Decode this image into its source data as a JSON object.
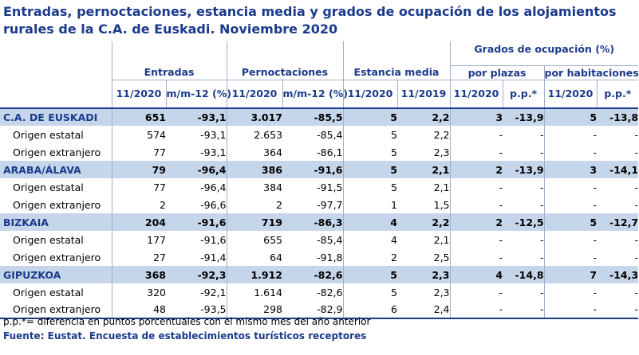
{
  "title": "Entradas, pernoctaciones, estancia media y grados de ocupación de los alojamientos rurales de la C.A. de Euskadi.  Noviembre 2020",
  "headers": {
    "entradas": "Entradas",
    "pernoctaciones": "Pernoctaciones",
    "estancia": "Estancia media",
    "grados": "Grados de ocupación (%)",
    "por_plazas": "por plazas",
    "por_habitaciones": "por habitaciones",
    "cols": [
      "11/2020",
      "m/m-12 (%)",
      "11/2020",
      "m/m-12 (%)",
      "11/2020",
      "11/2019",
      "11/2020",
      "p.p.*",
      "11/2020",
      "p.p.*"
    ]
  },
  "rows": [
    {
      "type": "region",
      "label": "C.A. DE EUSKADI",
      "values": [
        "651",
        "-93,1",
        "3.017",
        "-85,5",
        "5",
        "2,2",
        "3",
        "-13,9",
        "5",
        "-13,8"
      ]
    },
    {
      "type": "sub",
      "label": "Origen estatal",
      "values": [
        "574",
        "-93,1",
        "2.653",
        "-85,4",
        "5",
        "2,2",
        "-",
        "-",
        "-",
        "-"
      ]
    },
    {
      "type": "sub",
      "label": "Origen extranjero",
      "values": [
        "77",
        "-93,1",
        "364",
        "-86,1",
        "5",
        "2,3",
        "-",
        "-",
        "-",
        "-"
      ]
    },
    {
      "type": "region",
      "label": "ARABA/ÁLAVA",
      "values": [
        "79",
        "-96,4",
        "386",
        "-91,6",
        "5",
        "2,1",
        "2",
        "-13,9",
        "3",
        "-14,1"
      ]
    },
    {
      "type": "sub",
      "label": "Origen estatal",
      "values": [
        "77",
        "-96,4",
        "384",
        "-91,5",
        "5",
        "2,1",
        "-",
        "-",
        "-",
        "-"
      ]
    },
    {
      "type": "sub",
      "label": "Origen extranjero",
      "values": [
        "2",
        "-96,6",
        "2",
        "-97,7",
        "1",
        "1,5",
        "-",
        "-",
        "-",
        "-"
      ]
    },
    {
      "type": "region",
      "label": "BIZKAIA",
      "values": [
        "204",
        "-91,6",
        "719",
        "-86,3",
        "4",
        "2,2",
        "2",
        "-12,5",
        "5",
        "-12,7"
      ]
    },
    {
      "type": "sub",
      "label": "Origen estatal",
      "values": [
        "177",
        "-91,6",
        "655",
        "-85,4",
        "4",
        "2,1",
        "-",
        "-",
        "-",
        "-"
      ]
    },
    {
      "type": "sub",
      "label": "Origen extranjero",
      "values": [
        "27",
        "-91,4",
        "64",
        "-91,8",
        "2",
        "2,5",
        "-",
        "-",
        "-",
        "-"
      ]
    },
    {
      "type": "region",
      "label": "GIPUZKOA",
      "values": [
        "368",
        "-92,3",
        "1.912",
        "-82,6",
        "5",
        "2,3",
        "4",
        "-14,8",
        "7",
        "-14,3"
      ]
    },
    {
      "type": "sub",
      "label": "Origen estatal",
      "values": [
        "320",
        "-92,1",
        "1.614",
        "-82,6",
        "5",
        "2,3",
        "-",
        "-",
        "-",
        "-"
      ]
    },
    {
      "type": "sub",
      "label": "Origen extranjero",
      "values": [
        "48",
        "-93,5",
        "298",
        "-82,9",
        "6",
        "2,4",
        "-",
        "-",
        "-",
        "-"
      ]
    }
  ],
  "footnote": "p.p.*= diferencia en puntos porcentuales con el mismo mes del año anterior",
  "source": "Fuente: Eustat. Encuesta de establecimientos turísticos receptores"
}
